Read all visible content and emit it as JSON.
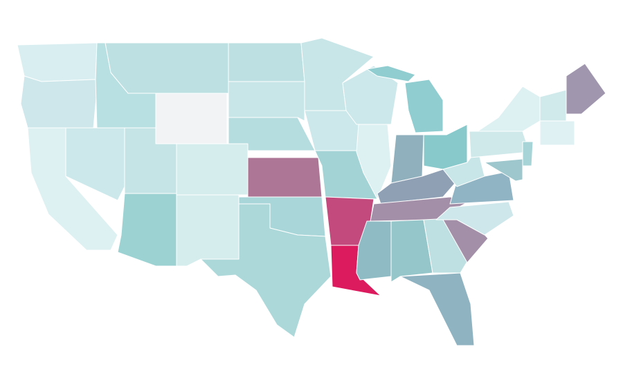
{
  "states": [
    {
      "color": "#d9eef0"
    },
    {
      "color": "#cde7ea"
    },
    {
      "color": "#ddf0f2"
    },
    {
      "color": "#cce8ea"
    },
    {
      "color": "#b8dfe1"
    },
    {
      "color": "#bde0e2"
    },
    {
      "color": "#f1f3f4"
    },
    {
      "color": "#c5e4e6"
    },
    {
      "color": "#d6eded"
    },
    {
      "color": "#9dd2d3"
    },
    {
      "color": "#d6eded"
    },
    {
      "color": "#bde0e2"
    },
    {
      "color": "#c8e5e7"
    },
    {
      "color": "#b5dcdf"
    },
    {
      "color": "#ad7596"
    },
    {
      "color": "#a9d6d8"
    },
    {
      "color": "#add8da"
    },
    {
      "color": "#c8e5e7"
    },
    {
      "color": "#cce8ea"
    },
    {
      "color": "#a3d3d5"
    },
    {
      "color": "#c34a7c"
    },
    {
      "color": "#dc1b5e"
    },
    {
      "color": "#cce8ea"
    },
    {
      "color": "#ddf0f2"
    },
    {
      "color": "#8fcdd0"
    },
    {
      "color": "#8fb0bc"
    },
    {
      "color": "#88c9cc"
    },
    {
      "color": "#8f9fb4"
    },
    {
      "color": "#a38fa7"
    },
    {
      "color": "#8fbcc4"
    },
    {
      "color": "#95c6c9"
    },
    {
      "color": "#bfe0e2"
    },
    {
      "color": "#8fb3c0"
    },
    {
      "color": "#a38fa7"
    },
    {
      "color": "#cde7ea"
    },
    {
      "color": "#90b4c3"
    },
    {
      "color": "#c8e5e7"
    },
    {
      "color": "#cfe8ea"
    },
    {
      "color": "#ddf0f2"
    },
    {
      "color": "#a096ae"
    },
    {
      "color": "#d0e9eb"
    },
    {
      "color": "#e0f1f3"
    },
    {
      "color": "#a7d5d7"
    },
    {
      "color": "#9dc7cc"
    }
  ]
}
